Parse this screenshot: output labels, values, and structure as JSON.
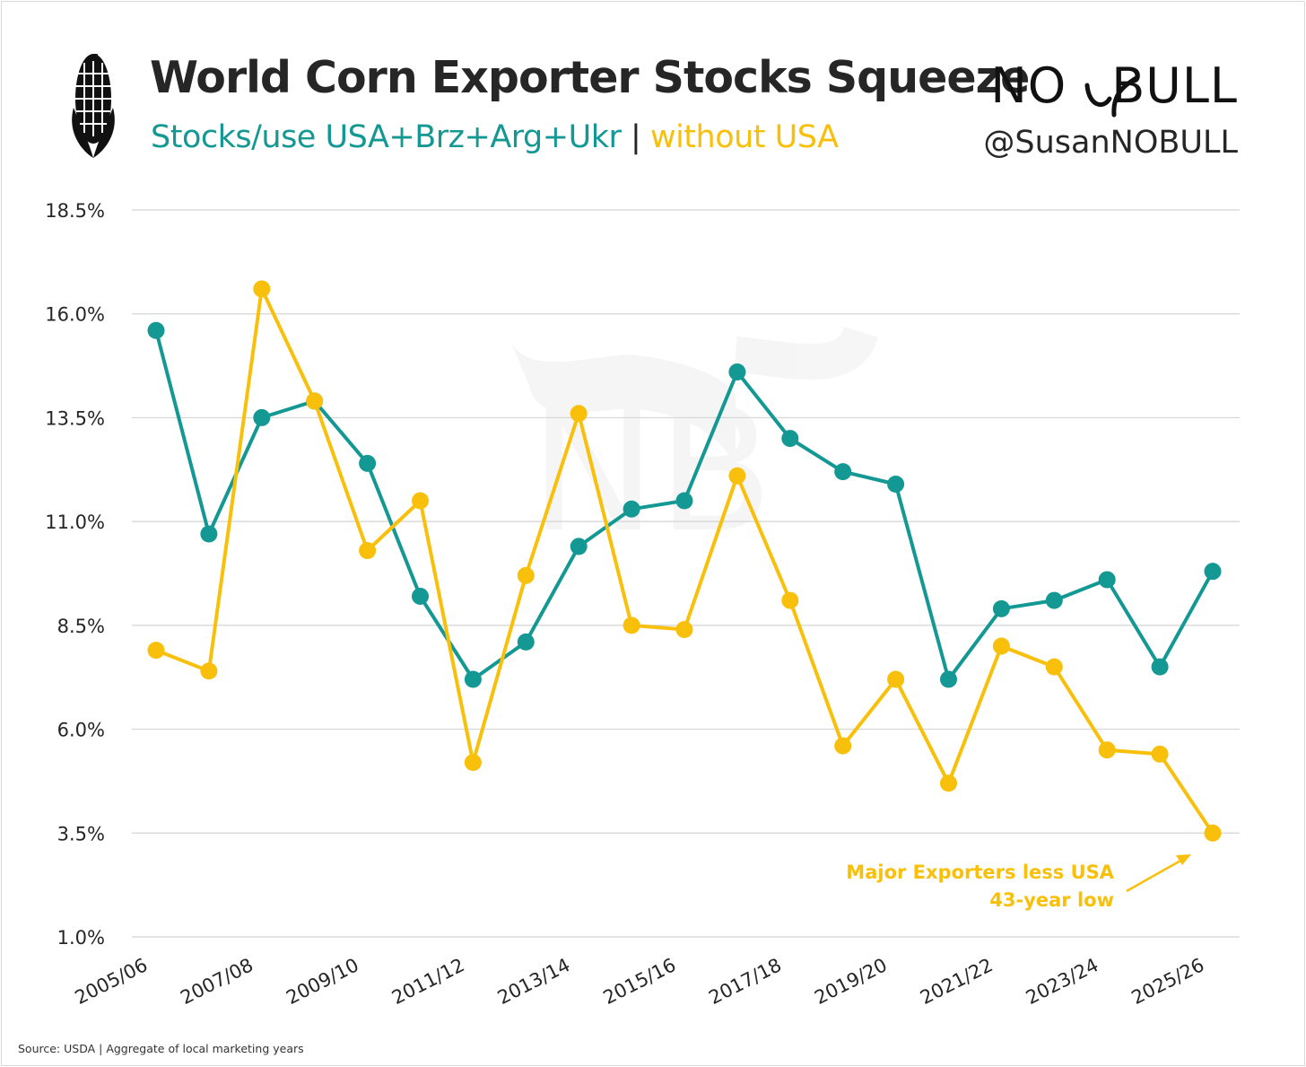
{
  "header": {
    "title": "World Corn Exporter Stocks Squeeze",
    "subtitle_teal": "Stocks/use USA+Brz+Arg+Ukr",
    "subtitle_sep": "|",
    "subtitle_gold": "without USA",
    "brand_left": "NO",
    "brand_right": "BULL",
    "handle": "@SusanNOBULL"
  },
  "footer": {
    "source": "Source: USDA | Aggregate of local marketing years"
  },
  "annotation": {
    "line1": "Major Exporters less USA",
    "line2": "43-year low"
  },
  "colors": {
    "teal": "#149894",
    "gold": "#F8C00A",
    "grid": "#d4d4d4",
    "text": "#262626"
  },
  "chart_data": {
    "type": "line",
    "title": "World Corn Exporter Stocks Squeeze",
    "subtitle": "Stocks/use USA+Brz+Arg+Ukr | without USA",
    "xlabel": "",
    "ylabel": "",
    "ylim": [
      1.0,
      18.5
    ],
    "yticks": [
      "1.0%",
      "3.5%",
      "6.0%",
      "8.5%",
      "11.0%",
      "13.5%",
      "16.0%",
      "18.5%"
    ],
    "ytick_values": [
      1.0,
      3.5,
      6.0,
      8.5,
      11.0,
      13.5,
      16.0,
      18.5
    ],
    "categories": [
      "2005/06",
      "2006/07",
      "2007/08",
      "2008/09",
      "2009/10",
      "2010/11",
      "2011/12",
      "2012/13",
      "2013/14",
      "2014/15",
      "2015/16",
      "2016/17",
      "2017/18",
      "2018/19",
      "2019/20",
      "2020/21",
      "2021/22",
      "2022/23",
      "2023/24",
      "2024/25",
      "2025/26"
    ],
    "xtick_labels": [
      "2005/06",
      "2007/08",
      "2009/10",
      "2011/12",
      "2013/14",
      "2015/16",
      "2017/18",
      "2019/20",
      "2021/22",
      "2023/24",
      "2025/26"
    ],
    "grid": true,
    "legend": "in subtitle",
    "series": [
      {
        "name": "Stocks/use USA+Brz+Arg+Ukr",
        "color": "#149894",
        "values": [
          15.6,
          10.7,
          13.5,
          13.9,
          12.4,
          9.2,
          7.2,
          8.1,
          10.4,
          11.3,
          11.5,
          14.6,
          13.0,
          12.2,
          11.9,
          7.2,
          8.9,
          9.1,
          9.6,
          7.5,
          9.8
        ]
      },
      {
        "name": "without USA",
        "color": "#F8C00A",
        "values": [
          7.9,
          7.4,
          16.6,
          13.9,
          10.3,
          11.5,
          5.2,
          9.7,
          13.6,
          8.5,
          8.4,
          12.1,
          9.1,
          5.6,
          7.2,
          4.7,
          8.0,
          7.5,
          5.5,
          5.4,
          3.5
        ]
      }
    ]
  }
}
